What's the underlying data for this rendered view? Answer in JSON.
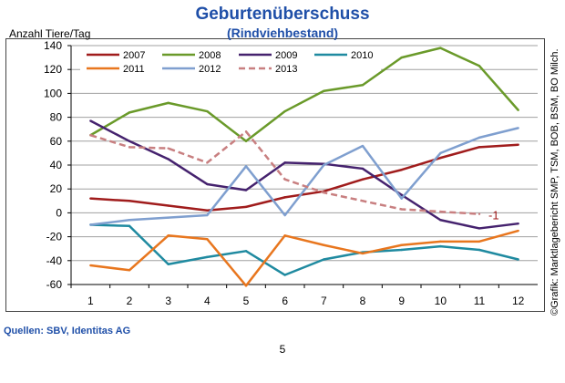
{
  "chart_data": {
    "type": "line",
    "title": "Geburtenüberschuss",
    "subtitle": "(Rindviehbestand)",
    "ylabel": "Anzahl Tiere/Tag",
    "xlabel": "",
    "categories": [
      "1",
      "2",
      "3",
      "4",
      "5",
      "6",
      "7",
      "8",
      "9",
      "10",
      "11",
      "12"
    ],
    "ylim": [
      -60,
      140
    ],
    "yticks": [
      -60,
      -40,
      -20,
      0,
      20,
      40,
      60,
      80,
      100,
      120,
      140
    ],
    "grid": true,
    "legend": "top",
    "series": [
      {
        "name": "2007",
        "color": "#a01c1c",
        "dash": false,
        "values": [
          12,
          10,
          6,
          2,
          5,
          13,
          18,
          28,
          36,
          46,
          55,
          57
        ]
      },
      {
        "name": "2008",
        "color": "#6a9a2a",
        "dash": false,
        "values": [
          65,
          84,
          92,
          85,
          60,
          85,
          102,
          107,
          130,
          138,
          123,
          86
        ]
      },
      {
        "name": "2009",
        "color": "#45226e",
        "dash": false,
        "values": [
          77,
          60,
          45,
          24,
          19,
          42,
          41,
          37,
          15,
          -6,
          -13,
          -9
        ]
      },
      {
        "name": "2010",
        "color": "#1f8aa0",
        "dash": false,
        "values": [
          -10,
          -11,
          -43,
          -37,
          -32,
          -52,
          -39,
          -33,
          -31,
          -28,
          -31,
          -39
        ]
      },
      {
        "name": "2011",
        "color": "#e8761e",
        "dash": false,
        "values": [
          -44,
          -48,
          -19,
          -22,
          -61,
          -19,
          -27,
          -34,
          -27,
          -24,
          -24,
          -15
        ]
      },
      {
        "name": "2012",
        "color": "#7f9fcf",
        "dash": false,
        "values": [
          -10,
          -6,
          -4,
          -2,
          39,
          -2,
          40,
          56,
          12,
          50,
          63,
          71
        ]
      },
      {
        "name": "2013",
        "color": "#c87f80",
        "dash": true,
        "values": [
          65,
          55,
          54,
          42,
          68,
          28,
          17,
          10,
          3,
          1,
          -1,
          null
        ]
      }
    ],
    "annotations": [
      {
        "text": "-1",
        "series": "2013",
        "x": "11"
      }
    ]
  },
  "credit": "©Grafik: Marktlagebericht SMP, TSM, BOB, BSM, BO Milch.",
  "source": "Quellen: SBV, Identitas AG",
  "page_number": "5"
}
